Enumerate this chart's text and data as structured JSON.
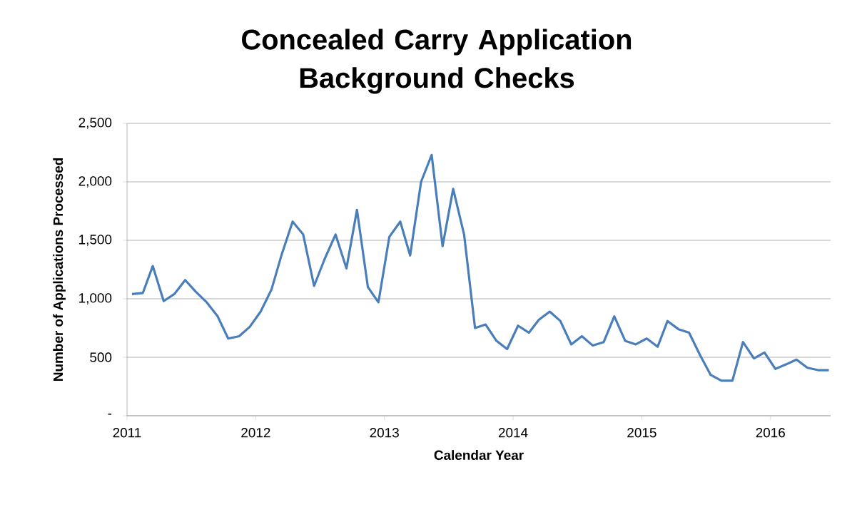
{
  "chart_data": {
    "type": "line",
    "title": "Concealed Carry Application Background Checks",
    "xlabel": "Calendar Year",
    "ylabel": "Number of Applications Processed",
    "x": [
      "2011-01-15",
      "2011-02-15",
      "2011-03-15",
      "2011-04-15",
      "2011-05-15",
      "2011-06-15",
      "2011-07-15",
      "2011-08-15",
      "2011-09-15",
      "2011-10-15",
      "2011-11-15",
      "2011-12-15",
      "2012-01-15",
      "2012-02-15",
      "2012-03-15",
      "2012-04-15",
      "2012-05-15",
      "2012-06-15",
      "2012-07-15",
      "2012-08-15",
      "2012-09-15",
      "2012-10-15",
      "2012-11-15",
      "2012-12-15",
      "2013-01-15",
      "2013-02-15",
      "2013-03-15",
      "2013-04-15",
      "2013-05-15",
      "2013-06-15",
      "2013-07-15",
      "2013-08-15",
      "2013-09-15",
      "2013-10-15",
      "2013-11-15",
      "2013-12-15",
      "2014-01-15",
      "2014-02-15",
      "2014-03-15",
      "2014-04-15",
      "2014-05-15",
      "2014-06-15",
      "2014-07-15",
      "2014-08-15",
      "2014-09-15",
      "2014-10-15",
      "2014-11-15",
      "2014-12-15",
      "2015-01-15",
      "2015-02-15",
      "2015-03-15",
      "2015-04-15",
      "2015-05-15",
      "2015-06-15",
      "2015-07-15",
      "2015-08-15",
      "2015-09-15",
      "2015-10-15",
      "2015-11-15",
      "2015-12-15",
      "2016-01-15",
      "2016-02-15",
      "2016-03-15",
      "2016-04-15",
      "2016-05-15",
      "2016-06-15"
    ],
    "series": [
      {
        "color": "#4a7ebb",
        "values": [
          1040,
          1050,
          1280,
          980,
          1040,
          1160,
          1060,
          970,
          850,
          660,
          680,
          760,
          890,
          1080,
          1380,
          1660,
          1550,
          1110,
          1340,
          1550,
          1260,
          1760,
          1100,
          970,
          1530,
          1660,
          1370,
          2000,
          2230,
          1450,
          1940,
          1550,
          750,
          780,
          640,
          570,
          770,
          710,
          820,
          890,
          810,
          610,
          680,
          600,
          630,
          850,
          640,
          610,
          660,
          590,
          810,
          740,
          710,
          520,
          350,
          300,
          300,
          630,
          490,
          540,
          400,
          440,
          480,
          410,
          390,
          390
        ]
      }
    ],
    "xlim": [
      "2011-01-01",
      "2016-06-20"
    ],
    "xticks": [
      "2011",
      "2012",
      "2013",
      "2014",
      "2015",
      "2016"
    ],
    "ylim": [
      0,
      2500
    ],
    "yticks": [
      {
        "value": 0,
        "label": "-"
      },
      500,
      {
        "value": 1000,
        "label": "1,000"
      },
      {
        "value": 1500,
        "label": "1,500"
      },
      {
        "value": 2000,
        "label": "2,000"
      },
      {
        "value": 2500,
        "label": "2,500"
      }
    ],
    "grid": "y",
    "line_style": "solid"
  }
}
